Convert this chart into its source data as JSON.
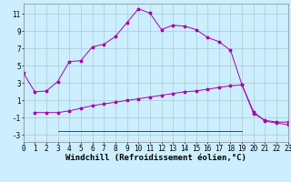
{
  "background_color": "#cceeff",
  "grid_color": "#aacccc",
  "line1_x": [
    0,
    1,
    2,
    3,
    4,
    5,
    6,
    7,
    8,
    9,
    10,
    11,
    12,
    13,
    14,
    15,
    16,
    17,
    18,
    19,
    20,
    21,
    22,
    23
  ],
  "line1_y": [
    4.2,
    2.0,
    2.1,
    3.2,
    5.5,
    5.6,
    7.2,
    7.5,
    8.4,
    10.0,
    11.6,
    11.1,
    9.2,
    9.7,
    9.6,
    9.2,
    8.3,
    7.8,
    6.8,
    2.8,
    -0.5,
    -1.3,
    -1.5,
    -1.5
  ],
  "line2_x": [
    1,
    2,
    3,
    4,
    5,
    6,
    7,
    8,
    9,
    10,
    11,
    12,
    13,
    14,
    15,
    16,
    17,
    18,
    19,
    20,
    21,
    22,
    23
  ],
  "line2_y": [
    -0.4,
    -0.4,
    -0.4,
    -0.2,
    0.1,
    0.4,
    0.6,
    0.8,
    1.0,
    1.2,
    1.4,
    1.6,
    1.8,
    2.0,
    2.1,
    2.3,
    2.5,
    2.7,
    2.8,
    -0.3,
    -1.4,
    -1.6,
    -1.8
  ],
  "line3_x": [
    3,
    4,
    5,
    6,
    7,
    8,
    9,
    10,
    11,
    12,
    13,
    14,
    15,
    16,
    17,
    18,
    19
  ],
  "line3_y": [
    -2.5,
    -2.5,
    -2.5,
    -2.5,
    -2.5,
    -2.5,
    -2.5,
    -2.5,
    -2.5,
    -2.5,
    -2.5,
    -2.5,
    -2.5,
    -2.5,
    -2.5,
    -2.5,
    -2.5
  ],
  "line_color": "#aa00aa",
  "marker": "*",
  "xlabel": "Windchill (Refroidissement éolien,°C)",
  "yticks": [
    -3,
    -1,
    1,
    3,
    5,
    7,
    9,
    11
  ],
  "xticks": [
    0,
    1,
    2,
    3,
    4,
    5,
    6,
    7,
    8,
    9,
    10,
    11,
    12,
    13,
    14,
    15,
    16,
    17,
    18,
    19,
    20,
    21,
    22,
    23
  ],
  "xlim": [
    0,
    23
  ],
  "ylim": [
    -3.8,
    12.2
  ],
  "xlabel_fontsize": 6.5,
  "tick_fontsize": 5.5,
  "figsize": [
    3.2,
    2.0
  ],
  "dpi": 100
}
